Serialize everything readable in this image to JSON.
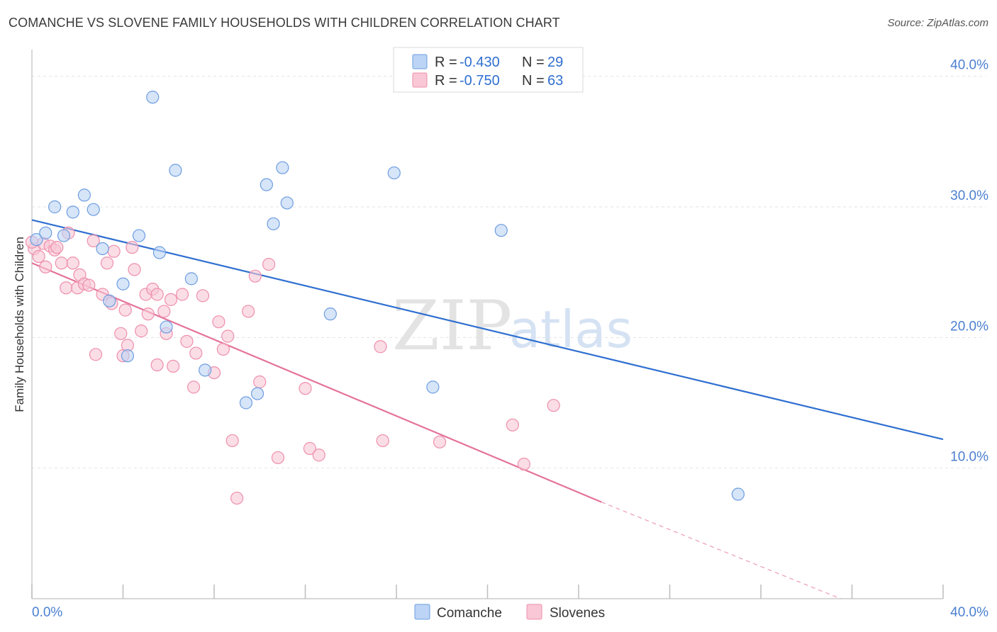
{
  "title": "COMANCHE VS SLOVENE FAMILY HOUSEHOLDS WITH CHILDREN CORRELATION CHART",
  "source": "Source: ZipAtlas.com",
  "watermark": {
    "zip": "ZIP",
    "atlas": "atlas"
  },
  "chart_data": {
    "type": "scatter",
    "title": "COMANCHE VS SLOVENE FAMILY HOUSEHOLDS WITH CHILDREN CORRELATION CHART",
    "xlabel": "",
    "ylabel": "Family Households with Children",
    "xlim": [
      0,
      40
    ],
    "ylim": [
      0,
      41.5
    ],
    "x_tick_labels": [
      "0.0%",
      "40.0%"
    ],
    "y_ticks": [
      10,
      20,
      30,
      40
    ],
    "y_tick_labels": [
      "10.0%",
      "20.0%",
      "30.0%",
      "40.0%"
    ],
    "grid": true,
    "legend_position": "top-center",
    "colors": {
      "comanche_fill": "#bcd4f5",
      "comanche_stroke": "#6d9de0",
      "comanche_line": "#2f6fd0",
      "slovenes_fill": "#f9c7d6",
      "slovenes_stroke": "#ee8fad",
      "slovenes_line": "#e4729a"
    },
    "series": [
      {
        "name": "Comanche",
        "R": "-0.430",
        "N": "29",
        "points": [
          [
            0.2,
            27.5
          ],
          [
            1.0,
            30.0
          ],
          [
            1.8,
            29.6
          ],
          [
            2.3,
            30.9
          ],
          [
            2.7,
            29.8
          ],
          [
            0.6,
            28.0
          ],
          [
            1.4,
            27.8
          ],
          [
            3.1,
            26.8
          ],
          [
            4.7,
            27.8
          ],
          [
            5.3,
            38.4
          ],
          [
            6.3,
            32.8
          ],
          [
            4.0,
            24.1
          ],
          [
            5.6,
            26.5
          ],
          [
            3.4,
            22.8
          ],
          [
            7.0,
            24.5
          ],
          [
            5.9,
            20.8
          ],
          [
            4.2,
            18.6
          ],
          [
            7.6,
            17.5
          ],
          [
            9.4,
            15.0
          ],
          [
            9.9,
            15.7
          ],
          [
            10.3,
            31.7
          ],
          [
            11.0,
            33.0
          ],
          [
            11.2,
            30.3
          ],
          [
            10.6,
            28.7
          ],
          [
            13.1,
            21.8
          ],
          [
            15.9,
            32.6
          ],
          [
            17.6,
            16.2
          ],
          [
            20.6,
            28.2
          ],
          [
            31.0,
            8.0
          ]
        ],
        "trend": {
          "x0": 0,
          "y0": 29.0,
          "x1": 40,
          "y1": 12.2
        }
      },
      {
        "name": "Slovenes",
        "R": "-0.750",
        "N": "63",
        "points": [
          [
            0.1,
            26.8
          ],
          [
            0.3,
            26.2
          ],
          [
            0.5,
            27.2
          ],
          [
            0.6,
            25.4
          ],
          [
            0.8,
            27.0
          ],
          [
            1.0,
            26.7
          ],
          [
            1.1,
            26.9
          ],
          [
            1.3,
            25.7
          ],
          [
            1.5,
            23.8
          ],
          [
            1.6,
            28.0
          ],
          [
            1.8,
            25.7
          ],
          [
            2.0,
            23.8
          ],
          [
            2.1,
            24.8
          ],
          [
            2.3,
            24.1
          ],
          [
            2.5,
            24.0
          ],
          [
            2.7,
            27.4
          ],
          [
            2.8,
            18.7
          ],
          [
            3.1,
            23.3
          ],
          [
            3.3,
            25.7
          ],
          [
            3.5,
            22.6
          ],
          [
            3.6,
            26.6
          ],
          [
            3.9,
            20.3
          ],
          [
            4.0,
            18.6
          ],
          [
            4.1,
            22.1
          ],
          [
            4.2,
            19.4
          ],
          [
            4.4,
            26.9
          ],
          [
            4.5,
            25.2
          ],
          [
            4.8,
            20.5
          ],
          [
            5.0,
            23.3
          ],
          [
            5.1,
            21.8
          ],
          [
            5.3,
            23.7
          ],
          [
            5.5,
            23.3
          ],
          [
            5.5,
            17.9
          ],
          [
            5.8,
            22.0
          ],
          [
            5.9,
            20.3
          ],
          [
            6.1,
            22.9
          ],
          [
            6.2,
            17.8
          ],
          [
            6.6,
            23.3
          ],
          [
            6.8,
            19.7
          ],
          [
            7.1,
            16.2
          ],
          [
            7.2,
            18.8
          ],
          [
            7.5,
            23.2
          ],
          [
            8.0,
            17.3
          ],
          [
            8.2,
            21.2
          ],
          [
            8.4,
            19.1
          ],
          [
            8.6,
            20.1
          ],
          [
            8.8,
            12.1
          ],
          [
            9.0,
            7.7
          ],
          [
            9.5,
            22.0
          ],
          [
            9.8,
            24.7
          ],
          [
            10.0,
            16.6
          ],
          [
            10.4,
            25.6
          ],
          [
            10.8,
            10.8
          ],
          [
            12.0,
            16.1
          ],
          [
            12.2,
            11.5
          ],
          [
            12.6,
            11.0
          ],
          [
            15.3,
            19.3
          ],
          [
            15.4,
            12.1
          ],
          [
            17.9,
            12.0
          ],
          [
            21.1,
            13.3
          ],
          [
            21.6,
            10.3
          ],
          [
            22.9,
            14.8
          ],
          [
            0.0,
            27.3
          ]
        ],
        "trend": {
          "x0": 0,
          "y0": 25.7,
          "x1": 25.0,
          "y1": 7.4
        },
        "trend_dashed": {
          "x0": 25.0,
          "y0": 7.4,
          "x1": 35.5,
          "y1": 0.0
        }
      }
    ]
  },
  "legend": {
    "r_label": "R = ",
    "n_label": "N = ",
    "rows": [
      {
        "r": "-0.430",
        "n": "29"
      },
      {
        "r": "-0.750",
        "n": "63"
      }
    ]
  },
  "bottom_legend": [
    "Comanche",
    "Slovenes"
  ]
}
